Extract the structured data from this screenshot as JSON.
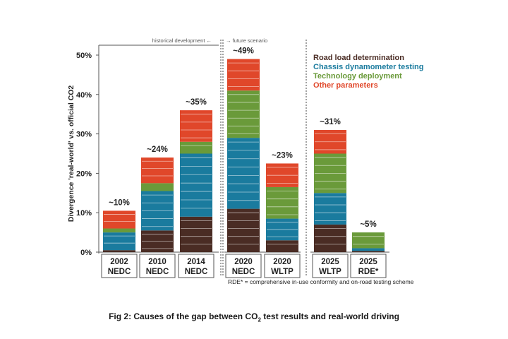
{
  "chart_data": {
    "type": "bar",
    "stacked": true,
    "ylabel": "Divergence 'real-world' vs. official CO2",
    "ylim": [
      0,
      50
    ],
    "yticks": [
      "0%",
      "10%",
      "20%",
      "30%",
      "40%",
      "50%"
    ],
    "y_tick_values": [
      0,
      10,
      20,
      30,
      40,
      50
    ],
    "categories": [
      {
        "line1": "2002",
        "line2": "NEDC"
      },
      {
        "line1": "2010",
        "line2": "NEDC"
      },
      {
        "line1": "2014",
        "line2": "NEDC"
      },
      {
        "line1": "2020",
        "line2": "NEDC"
      },
      {
        "line1": "2020",
        "line2": "WLTP"
      },
      {
        "line1": "2025",
        "line2": "WLTP"
      },
      {
        "line1": "2025",
        "line2": "RDE*"
      }
    ],
    "totals_labels": [
      "~10%",
      "~24%",
      "~35%",
      "~49%",
      "~23%",
      "~31%",
      "~5%"
    ],
    "series": [
      {
        "name": "Road load determination",
        "color": "#4a2c24",
        "values": [
          0.5,
          5.5,
          9,
          11,
          3,
          7,
          0.3
        ]
      },
      {
        "name": "Chassis dynamometer testing",
        "color": "#1a7b9e",
        "values": [
          4.5,
          10,
          16,
          18,
          5.5,
          8,
          0.7
        ]
      },
      {
        "name": "Technology deployment",
        "color": "#6a9a3a",
        "values": [
          1,
          2,
          3,
          12,
          8,
          10,
          4
        ]
      },
      {
        "name": "Other parameters",
        "color": "#e0472a",
        "values": [
          4.5,
          6.5,
          8,
          8,
          6,
          6,
          0
        ]
      }
    ],
    "legend_position": "top-right",
    "annotations": {
      "historical": "historical development",
      "future": "future scenario",
      "footnote": "RDE* = comprehensive in-use conformity and on-road testing scheme"
    }
  },
  "caption": {
    "prefix": "Fig 2: Causes of the gap between CO",
    "sub": "2",
    "suffix": " test results and real-world driving"
  }
}
